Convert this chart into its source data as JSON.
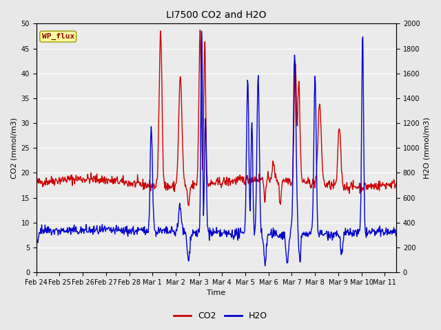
{
  "title": "LI7500 CO2 and H2O",
  "xlabel": "Time",
  "ylabel_left": "CO2 (mmol/m3)",
  "ylabel_right": "H2O (mmol/m3)",
  "annotation": "WP_flux",
  "ylim_left": [
    0,
    50
  ],
  "ylim_right": [
    0,
    2000
  ],
  "yticks_left": [
    0,
    5,
    10,
    15,
    20,
    25,
    30,
    35,
    40,
    45,
    50
  ],
  "yticks_right": [
    0,
    200,
    400,
    600,
    800,
    1000,
    1200,
    1400,
    1600,
    1800,
    2000
  ],
  "fig_bg_color": "#e8e8e8",
  "plot_bg_color": "#ebebeb",
  "co2_color": "#cc0000",
  "h2o_color": "#0000cc",
  "legend_co2": "CO2",
  "legend_h2o": "H2O",
  "n_days": 15.5,
  "tick_labels": [
    "Feb 24",
    "Feb 25",
    "Feb 26",
    "Feb 27",
    "Feb 28",
    "Mar 1",
    "Mar 2",
    "Mar 3",
    "Mar 4",
    "Mar 5",
    "Mar 6",
    "Mar 7",
    "Mar 8",
    "Mar 9",
    "Mar 10",
    "Mar 11"
  ],
  "tick_positions": [
    0,
    1,
    2,
    3,
    4,
    5,
    6,
    7,
    8,
    9,
    10,
    11,
    12,
    13,
    14,
    15
  ],
  "title_fontsize": 10,
  "axis_label_fontsize": 8,
  "tick_fontsize": 7,
  "legend_fontsize": 9,
  "annotation_fontsize": 8,
  "linewidth": 1.0,
  "grid_color": "#ffffff",
  "grid_linewidth": 1.0
}
